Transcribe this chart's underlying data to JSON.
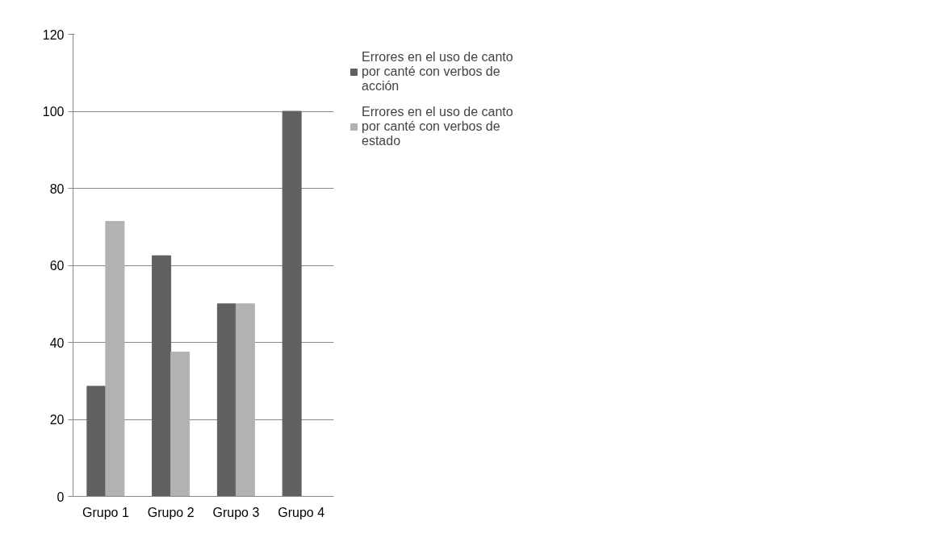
{
  "chart_data": {
    "type": "bar",
    "categories": [
      "Grupo 1",
      "Grupo 2",
      "Grupo 3",
      "Grupo 4"
    ],
    "series": [
      {
        "name": "Errores en el uso de canto por canté con verbos de acción",
        "color": "#606060",
        "values": [
          28.6,
          62.5,
          50,
          100
        ]
      },
      {
        "name": "Errores en el uso de canto por canté con verbos de estado",
        "color": "#b2b2b2",
        "values": [
          71.4,
          37.5,
          50,
          0
        ]
      }
    ],
    "ylim": [
      0,
      120
    ],
    "yticks": [
      0,
      20,
      40,
      60,
      80,
      100,
      120
    ],
    "grid": "y",
    "legend": "right"
  }
}
